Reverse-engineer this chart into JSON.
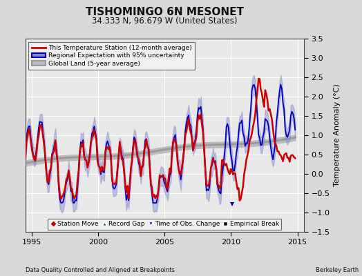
{
  "title": "TISHOMINGO 6N MESONET",
  "subtitle": "34.333 N, 96.679 W (United States)",
  "ylabel": "Temperature Anomaly (°C)",
  "xlabel_left": "Data Quality Controlled and Aligned at Breakpoints",
  "xlabel_right": "Berkeley Earth",
  "xlim": [
    1994.5,
    2015.5
  ],
  "ylim": [
    -1.5,
    3.5
  ],
  "yticks": [
    -1.5,
    -1.0,
    -0.5,
    0.0,
    0.5,
    1.0,
    1.5,
    2.0,
    2.5,
    3.0,
    3.5
  ],
  "xticks": [
    1995,
    2000,
    2005,
    2010,
    2015
  ],
  "background_color": "#d8d8d8",
  "plot_bg_color": "#e8e8e8",
  "grid_color": "#ffffff",
  "station_line_color": "#cc0000",
  "regional_line_color": "#0000bb",
  "regional_fill_color": "#8888cc",
  "global_line_color": "#999999",
  "global_fill_color": "#bbbbbb",
  "legend1_items": [
    "This Temperature Station (12-month average)",
    "Regional Expectation with 95% uncertainty",
    "Global Land (5-year average)"
  ],
  "legend2_items": [
    "Station Move",
    "Record Gap",
    "Time of Obs. Change",
    "Empirical Break"
  ]
}
